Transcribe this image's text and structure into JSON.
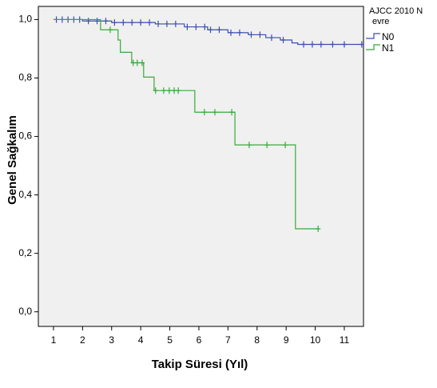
{
  "chart_data": {
    "type": "survival",
    "xlabel": "Takip Süresi (Yıl)",
    "ylabel": "Genel Sağkalım",
    "legend_title": [
      "AJCC 2010 N",
      "evre"
    ],
    "xlim": [
      0.48,
      11.66
    ],
    "xticks": [
      1,
      2,
      3,
      4,
      5,
      6,
      7,
      8,
      9,
      10,
      11
    ],
    "ylim": [
      -0.05,
      1.045
    ],
    "yticks": [
      {
        "value": 0,
        "label": "0,0"
      },
      {
        "value": 0.2,
        "label": "0,2"
      },
      {
        "value": 0.4,
        "label": "0,4"
      },
      {
        "value": 0.6,
        "label": "0,6"
      },
      {
        "value": 0.8,
        "label": "0,8"
      },
      {
        "value": 1,
        "label": "1,0"
      }
    ],
    "series": [
      {
        "name": "N0",
        "color": "#3b4fb0",
        "x": [
          1,
          2.0,
          3.0,
          4.5,
          5.5,
          6.3,
          7.0,
          7.7,
          8.3,
          8.8,
          9.2,
          9.4
        ],
        "values": [
          1.0,
          0.995,
          0.99,
          0.985,
          0.975,
          0.965,
          0.955,
          0.948,
          0.938,
          0.93,
          0.92,
          0.915
        ],
        "censor_x": [
          1.1,
          1.3,
          1.5,
          1.7,
          1.9,
          2.2,
          2.5,
          2.8,
          3.1,
          3.4,
          3.7,
          4.0,
          4.3,
          4.6,
          4.9,
          5.2,
          5.6,
          5.9,
          6.2,
          6.4,
          6.7,
          7.1,
          7.4,
          7.8,
          8.1,
          8.5,
          8.9,
          9.6,
          9.9,
          10.2,
          10.6,
          11.0,
          11.6
        ],
        "censor_values": [
          1.0,
          1.0,
          1.0,
          1.0,
          1.0,
          0.995,
          0.995,
          0.995,
          0.99,
          0.99,
          0.99,
          0.99,
          0.99,
          0.985,
          0.985,
          0.985,
          0.975,
          0.975,
          0.975,
          0.965,
          0.965,
          0.955,
          0.955,
          0.948,
          0.948,
          0.938,
          0.93,
          0.915,
          0.915,
          0.915,
          0.915,
          0.915,
          0.915
        ]
      },
      {
        "name": "N1",
        "color": "#3aa83a",
        "x": [
          1,
          2.62,
          3.22,
          3.3,
          3.69,
          4.1,
          4.46,
          5.86,
          7.24,
          9.32
        ],
        "values": [
          1.0,
          0.965,
          0.93,
          0.888,
          0.852,
          0.803,
          0.757,
          0.683,
          0.571,
          0.284
        ],
        "censor_x": [
          2.95,
          3.74,
          3.88,
          4.05,
          4.51,
          4.79,
          4.98,
          5.15,
          5.29,
          6.19,
          6.55,
          7.13,
          7.73,
          8.34,
          8.97,
          10.1
        ],
        "censor_values": [
          0.965,
          0.852,
          0.852,
          0.852,
          0.757,
          0.757,
          0.757,
          0.757,
          0.757,
          0.683,
          0.683,
          0.683,
          0.571,
          0.571,
          0.571,
          0.284
        ]
      }
    ]
  }
}
